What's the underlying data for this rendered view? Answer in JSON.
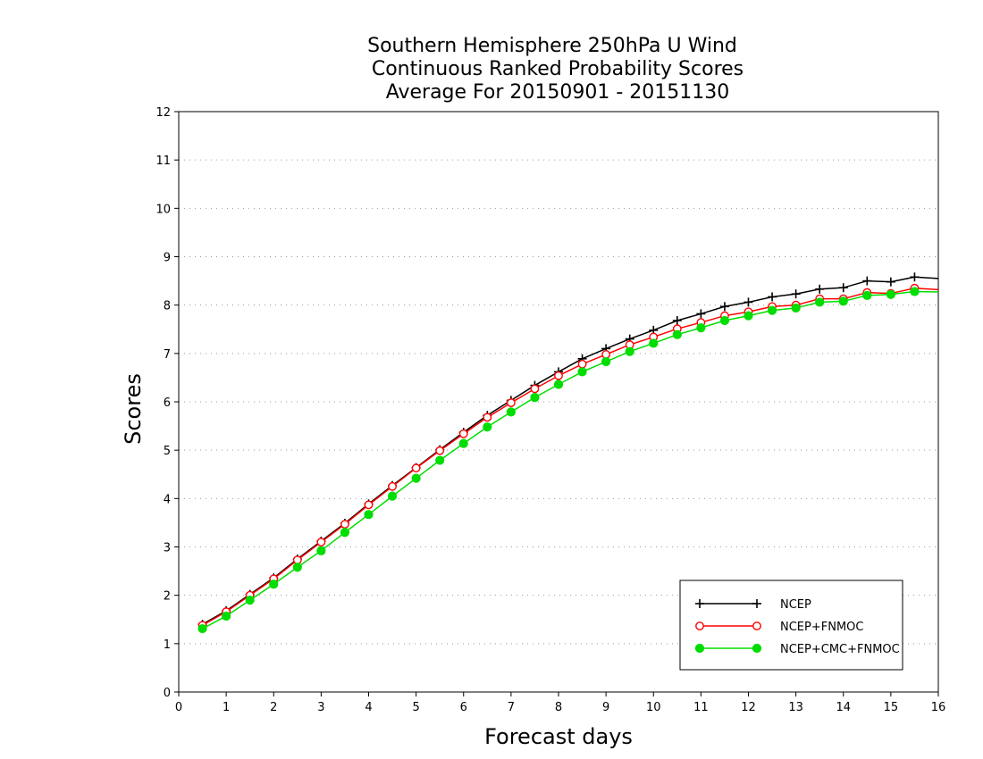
{
  "chart_data": {
    "type": "line",
    "title": [
      "Southern Hemisphere 250hPa U Wind",
      "Continuous Ranked Probability Scores",
      "Average For 20150901 - 20151130"
    ],
    "xlabel": "Forecast days",
    "ylabel": "Scores",
    "xlim": [
      0,
      16
    ],
    "ylim": [
      0,
      12
    ],
    "xticks": [
      0,
      1,
      2,
      3,
      4,
      5,
      6,
      7,
      8,
      9,
      10,
      11,
      12,
      13,
      14,
      15,
      16
    ],
    "yticks": [
      0,
      1,
      2,
      3,
      4,
      5,
      6,
      7,
      8,
      9,
      10,
      11,
      12
    ],
    "grid": "horizontal-dotted",
    "legend_position": "bottom-right",
    "x": [
      0.5,
      1,
      1.5,
      2,
      2.5,
      3,
      3.5,
      4,
      4.5,
      5,
      5.5,
      6,
      6.5,
      7,
      7.5,
      8,
      8.5,
      9,
      9.5,
      10,
      10.5,
      11,
      11.5,
      12,
      12.5,
      13,
      13.5,
      14,
      14.5,
      15,
      15.5,
      16
    ],
    "series": [
      {
        "name": "NCEP",
        "color": "#000000",
        "marker": "plus",
        "values": [
          1.4,
          1.68,
          2.02,
          2.36,
          2.75,
          3.12,
          3.49,
          3.89,
          4.27,
          4.64,
          5.01,
          5.37,
          5.72,
          6.03,
          6.34,
          6.62,
          6.89,
          7.1,
          7.3,
          7.48,
          7.68,
          7.82,
          7.97,
          8.06,
          8.17,
          8.23,
          8.33,
          8.36,
          8.5,
          8.48,
          8.58,
          8.55
        ]
      },
      {
        "name": "NCEP+FNMOC",
        "color": "#ff0000",
        "marker": "circle-open",
        "values": [
          1.38,
          1.66,
          2.0,
          2.34,
          2.73,
          3.1,
          3.47,
          3.87,
          4.25,
          4.63,
          4.99,
          5.34,
          5.68,
          5.98,
          6.27,
          6.54,
          6.78,
          6.98,
          7.18,
          7.34,
          7.51,
          7.64,
          7.78,
          7.86,
          7.97,
          8.0,
          8.13,
          8.13,
          8.26,
          8.24,
          8.35,
          8.32
        ]
      },
      {
        "name": "NCEP+CMC+FNMOC",
        "color": "#00dd00",
        "marker": "circle-filled",
        "values": [
          1.31,
          1.57,
          1.9,
          2.23,
          2.58,
          2.92,
          3.3,
          3.67,
          4.05,
          4.42,
          4.79,
          5.14,
          5.48,
          5.79,
          6.09,
          6.36,
          6.62,
          6.83,
          7.04,
          7.21,
          7.39,
          7.53,
          7.68,
          7.78,
          7.89,
          7.94,
          8.06,
          8.08,
          8.2,
          8.22,
          8.28,
          8.27
        ]
      }
    ]
  }
}
